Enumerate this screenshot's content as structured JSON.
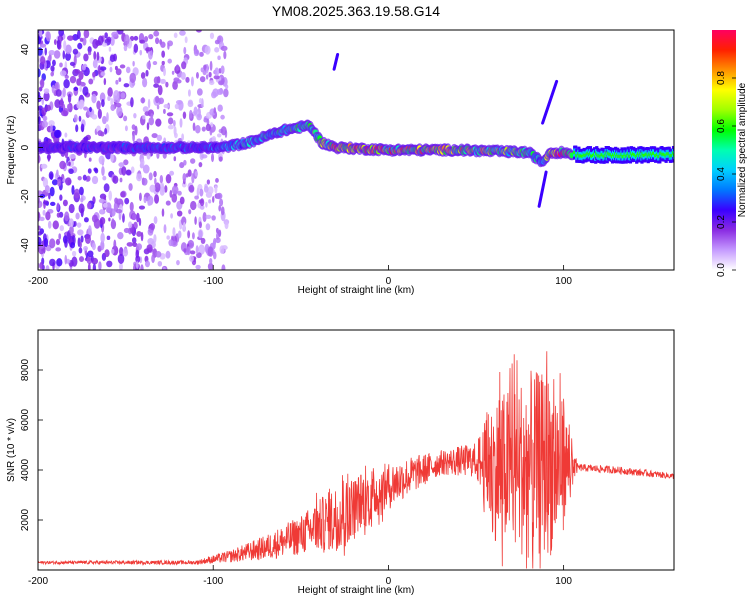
{
  "title": "YM08.2025.363.19.58.G14",
  "chart_data": [
    {
      "type": "heatmap",
      "name": "spectrogram",
      "xlabel": "Height of straight line (km)",
      "ylabel": "Frequency (Hz)",
      "xlim": [
        -200,
        163
      ],
      "ylim": [
        -50,
        48
      ],
      "x_ticks": [
        -200,
        -100,
        0,
        100
      ],
      "y_ticks": [
        -40,
        -20,
        0,
        20,
        40
      ],
      "colorbar": {
        "label": "Normalized spectral amplitude",
        "range": [
          0,
          1
        ],
        "ticks": [
          "0.0",
          "0.2",
          "0.4",
          "0.6",
          "0.8"
        ],
        "colors": [
          "#ffffff",
          "#c59aff",
          "#8a2be2",
          "#3a00ff",
          "#0078ff",
          "#00d0ff",
          "#00ffb0",
          "#00ff00",
          "#a0ff00",
          "#ffff00",
          "#ff9000",
          "#ff2000",
          "#ff0060"
        ]
      },
      "ridge": [
        {
          "x": -200,
          "f": 0,
          "amp": 0.25
        },
        {
          "x": -120,
          "f": 0,
          "amp": 0.3
        },
        {
          "x": -95,
          "f": 0,
          "amp": 0.35
        },
        {
          "x": -80,
          "f": 2,
          "amp": 0.45
        },
        {
          "x": -60,
          "f": 7,
          "amp": 0.5
        },
        {
          "x": -45,
          "f": 9,
          "amp": 0.55
        },
        {
          "x": -38,
          "f": 2,
          "amp": 0.6
        },
        {
          "x": -30,
          "f": 0,
          "amp": 0.85
        },
        {
          "x": 0,
          "f": -1,
          "amp": 0.8
        },
        {
          "x": 40,
          "f": -1,
          "amp": 0.75
        },
        {
          "x": 80,
          "f": -2,
          "amp": 0.6
        },
        {
          "x": 88,
          "f": -6,
          "amp": 0.35
        },
        {
          "x": 92,
          "f": -2,
          "amp": 0.8
        },
        {
          "x": 100,
          "f": -2,
          "amp": 0.85
        },
        {
          "x": 110,
          "f": -3,
          "amp": 0.55
        },
        {
          "x": 163,
          "f": -3,
          "amp": 0.5
        }
      ],
      "noise_region_x": [
        -200,
        -92
      ],
      "spikes": [
        {
          "x_from": -31,
          "f_from": 32,
          "x_to": -29,
          "f_to": 38
        },
        {
          "x_from": 88,
          "f_from": 10,
          "x_to": 96,
          "f_to": 27
        },
        {
          "x_from": 86,
          "f_from": -24,
          "x_to": 90,
          "f_to": -10
        }
      ]
    },
    {
      "type": "line",
      "name": "snr",
      "xlabel": "Height of straight line (km)",
      "ylabel": "SNR (10 * v/v)",
      "xlim": [
        -200,
        163
      ],
      "ylim": [
        0,
        9600
      ],
      "x_ticks": [
        -200,
        -100,
        0,
        100
      ],
      "y_ticks": [
        2000,
        4000,
        6000,
        8000
      ],
      "color": "#ef3a36",
      "envelope": [
        {
          "x": -200,
          "base": 300,
          "noise": 60
        },
        {
          "x": -110,
          "base": 300,
          "noise": 80
        },
        {
          "x": -90,
          "base": 550,
          "noise": 250
        },
        {
          "x": -70,
          "base": 900,
          "noise": 500
        },
        {
          "x": -50,
          "base": 1400,
          "noise": 800
        },
        {
          "x": -30,
          "base": 2100,
          "noise": 1300
        },
        {
          "x": -10,
          "base": 3000,
          "noise": 1100
        },
        {
          "x": 10,
          "base": 3700,
          "noise": 800
        },
        {
          "x": 30,
          "base": 4300,
          "noise": 500
        },
        {
          "x": 50,
          "base": 4400,
          "noise": 700
        },
        {
          "x": 60,
          "base": 4000,
          "noise": 2800
        },
        {
          "x": 80,
          "base": 4200,
          "noise": 3800
        },
        {
          "x": 95,
          "base": 4200,
          "noise": 3600
        },
        {
          "x": 103,
          "base": 4300,
          "noise": 1500
        },
        {
          "x": 108,
          "base": 4100,
          "noise": 150
        },
        {
          "x": 130,
          "base": 4000,
          "noise": 150
        },
        {
          "x": 163,
          "base": 3750,
          "noise": 120
        }
      ]
    }
  ]
}
